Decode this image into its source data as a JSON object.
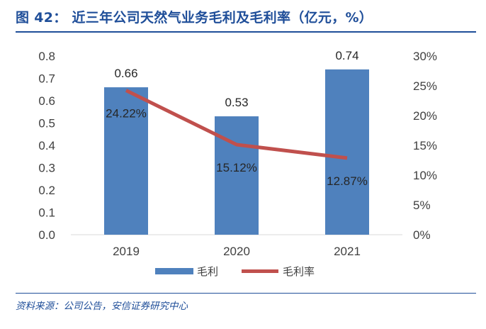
{
  "header": {
    "title": "图 42： 近三年公司天然气业务毛利及毛利率（亿元，%）"
  },
  "source": {
    "text": "资料来源：公司公告，安信证券研究中心"
  },
  "colors": {
    "title": "#1f4e99",
    "bar": "#4f81bd",
    "line": "#c0504d",
    "axis": "#d9d9d9",
    "text": "#404040"
  },
  "chart_data": {
    "type": "bar",
    "categories": [
      "2019",
      "2020",
      "2021"
    ],
    "series": [
      {
        "name": "毛利",
        "type": "bar",
        "axis": "left",
        "values": [
          0.66,
          0.53,
          0.74
        ],
        "labels": [
          "0.66",
          "0.53",
          "0.74"
        ]
      },
      {
        "name": "毛利率",
        "type": "line",
        "axis": "right",
        "values": [
          24.22,
          15.12,
          12.87
        ],
        "labels": [
          "24.22%",
          "15.12%",
          "12.87%"
        ]
      }
    ],
    "y_left": {
      "min": 0,
      "max": 0.8,
      "step": 0.1,
      "ticks": [
        "0.0",
        "0.1",
        "0.2",
        "0.3",
        "0.4",
        "0.5",
        "0.6",
        "0.7",
        "0.8"
      ]
    },
    "y_right": {
      "min": 0,
      "max": 30,
      "step": 5,
      "ticks": [
        "0%",
        "5%",
        "10%",
        "15%",
        "20%",
        "25%",
        "30%"
      ]
    },
    "legend": [
      "毛利",
      "毛利率"
    ],
    "legend_position": "bottom",
    "grid": false
  }
}
